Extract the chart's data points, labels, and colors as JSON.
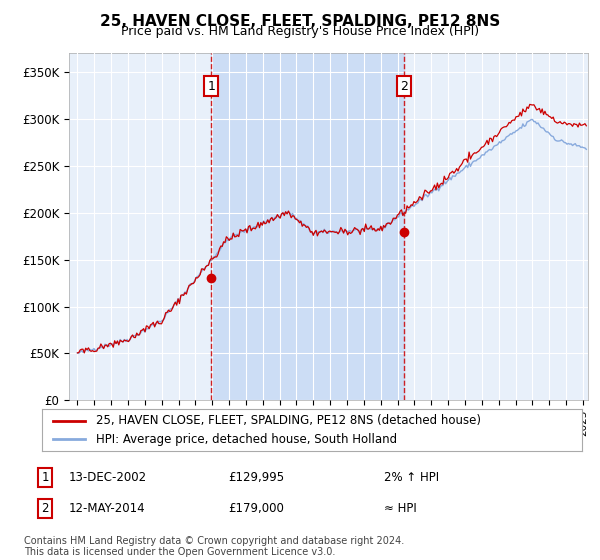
{
  "title": "25, HAVEN CLOSE, FLEET, SPALDING, PE12 8NS",
  "subtitle": "Price paid vs. HM Land Registry's House Price Index (HPI)",
  "ylim": [
    0,
    370000
  ],
  "xlim_start": 1994.5,
  "xlim_end": 2025.3,
  "marker1_x": 2002.95,
  "marker1_y": 129995,
  "marker1_label": "1",
  "marker1_date": "13-DEC-2002",
  "marker1_price": "£129,995",
  "marker1_hpi": "2% ↑ HPI",
  "marker2_x": 2014.37,
  "marker2_y": 179000,
  "marker2_label": "2",
  "marker2_date": "12-MAY-2014",
  "marker2_price": "£179,000",
  "marker2_hpi": "≈ HPI",
  "line1_color": "#cc0000",
  "line2_color": "#88aadd",
  "shade_color": "#ccddf5",
  "background_color": "#e8f0fa",
  "grid_color": "#ffffff",
  "legend_line1": "25, HAVEN CLOSE, FLEET, SPALDING, PE12 8NS (detached house)",
  "legend_line2": "HPI: Average price, detached house, South Holland",
  "footnote": "Contains HM Land Registry data © Crown copyright and database right 2024.\nThis data is licensed under the Open Government Licence v3.0."
}
